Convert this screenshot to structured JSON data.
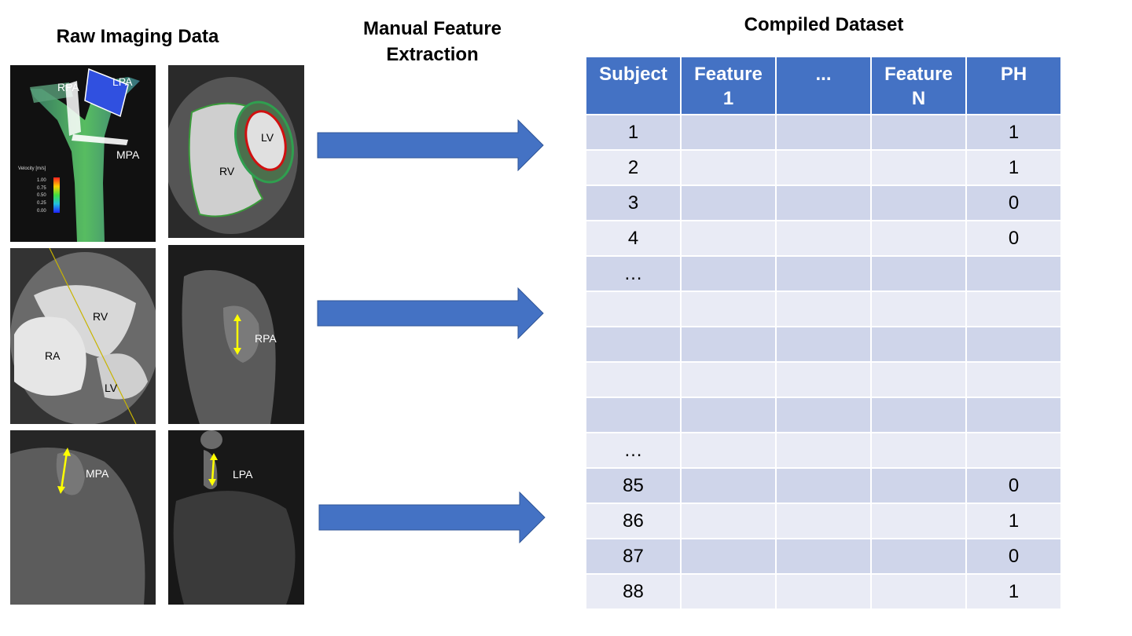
{
  "headings": {
    "raw": "Raw Imaging Data",
    "extraction_line1": "Manual Feature",
    "extraction_line2": "Extraction",
    "compiled": "Compiled Dataset"
  },
  "panels": {
    "flow": {
      "labels": {
        "rpa": "RPA",
        "lpa": "LPA",
        "mpa": "MPA"
      },
      "legend_title": "Velocity [m/s]",
      "legend_ticks": [
        "1.00",
        "0.75",
        "0.50",
        "0.25",
        "0.00"
      ]
    },
    "short_axis": {
      "labels": {
        "lv": "LV",
        "rv": "RV"
      }
    },
    "four_chamber": {
      "labels": {
        "rv": "RV",
        "ra": "RA",
        "lv": "LV"
      }
    },
    "rpa_view": {
      "labels": {
        "rpa": "RPA"
      }
    },
    "mpa_view": {
      "labels": {
        "mpa": "MPA"
      }
    },
    "lpa_view": {
      "labels": {
        "lpa": "LPA"
      }
    }
  },
  "colors": {
    "arrow": "#4472c4",
    "header": "#4472c4",
    "row_odd": "#cfd5ea",
    "row_even": "#e9ebf5",
    "measure_arrow": "#ffff00"
  },
  "table": {
    "headers": [
      {
        "line1": "Subject",
        "line2": ""
      },
      {
        "line1": "Feature",
        "line2": "1"
      },
      {
        "line1": "...",
        "line2": ""
      },
      {
        "line1": "Feature",
        "line2": "N"
      },
      {
        "line1": "PH",
        "line2": ""
      }
    ],
    "rows": [
      {
        "subject": "1",
        "ph": "1"
      },
      {
        "subject": "2",
        "ph": "1"
      },
      {
        "subject": "3",
        "ph": "0"
      },
      {
        "subject": "4",
        "ph": "0"
      },
      {
        "subject": "…",
        "ph": ""
      },
      {
        "subject": "",
        "ph": ""
      },
      {
        "subject": "",
        "ph": ""
      },
      {
        "subject": "",
        "ph": ""
      },
      {
        "subject": "",
        "ph": ""
      },
      {
        "subject": "…",
        "ph": ""
      },
      {
        "subject": "85",
        "ph": "0"
      },
      {
        "subject": "86",
        "ph": "1"
      },
      {
        "subject": "87",
        "ph": "0"
      },
      {
        "subject": "88",
        "ph": "1"
      }
    ]
  }
}
